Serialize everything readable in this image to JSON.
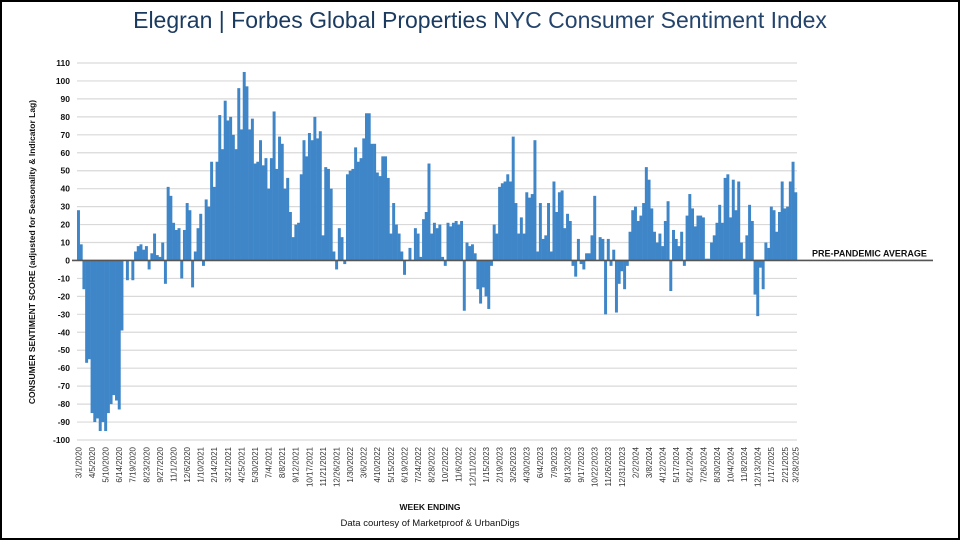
{
  "title": {
    "brand": "Elegran | Forbes Global Properties",
    "subject": "NYC Consumer Sentiment Index"
  },
  "colors": {
    "bar": "#3f86c8",
    "title": "#1b3a5f",
    "grid": "#d9d9d9",
    "zero_line": "#555555"
  },
  "chart_data": {
    "type": "bar",
    "title": "Elegran | Forbes Global Properties NYC Consumer Sentiment Index",
    "xlabel": "WEEK ENDING",
    "ylabel": "CONSUMER SENTIMENT SCORE (adjusted for Seasonality & Indicator Lag)",
    "ylim": [
      -100,
      110
    ],
    "yticks": [
      110,
      100,
      90,
      80,
      70,
      60,
      50,
      40,
      30,
      20,
      10,
      0,
      -10,
      -20,
      -30,
      -40,
      -50,
      -60,
      -70,
      -80,
      -90,
      -100
    ],
    "grid": true,
    "reference_line": {
      "value": 0,
      "label": "PRE-PANDEMIC AVERAGE"
    },
    "tick_every_weeks": 5,
    "x_tick_labels": [
      "3/1/2020",
      "4/5/2020",
      "5/10/2020",
      "6/14/2020",
      "7/19/2020",
      "8/23/2020",
      "9/27/2020",
      "11/1/2020",
      "12/6/2020",
      "1/10/2021",
      "2/14/2021",
      "3/21/2021",
      "4/25/2021",
      "5/30/2021",
      "7/4/2021",
      "8/8/2021",
      "9/12/2021",
      "10/17/2021",
      "11/21/2021",
      "12/26/2021",
      "1/30/2022",
      "3/6/2022",
      "4/10/2022",
      "5/15/2022",
      "6/19/2022",
      "7/24/2022",
      "8/28/2022",
      "10/2/2022",
      "11/6/2022",
      "12/11/2022",
      "1/15/2023",
      "2/19/2023",
      "3/26/2023",
      "4/30/2023",
      "6/4/2023",
      "7/9/2023",
      "8/13/2023",
      "9/17/2023",
      "10/22/2023",
      "11/26/2023",
      "12/31/2023",
      "2/2/2024",
      "3/8/2024",
      "4/12/2024",
      "5/17/2024",
      "6/21/2024",
      "7/26/2024",
      "8/30/2024",
      "10/4/2024",
      "11/8/2024",
      "12/13/2024",
      "1/17/2025",
      "2/21/2025",
      "3/28/2025"
    ],
    "values": [
      28,
      9,
      -16,
      -57,
      -55,
      -85,
      -90,
      -88,
      -95,
      -90,
      -95,
      -85,
      -80,
      -75,
      -78,
      -83,
      -39,
      0,
      -11,
      0,
      -11,
      5,
      8,
      9,
      6,
      8,
      -5,
      4,
      15,
      3,
      2,
      10,
      -13,
      41,
      36,
      21,
      17,
      18,
      -10,
      17,
      32,
      28,
      -15,
      5,
      18,
      26,
      -3,
      34,
      30,
      55,
      41,
      55,
      81,
      62,
      89,
      78,
      80,
      70,
      62,
      96,
      73,
      105,
      97,
      73,
      79,
      54,
      55,
      67,
      53,
      57,
      40,
      57,
      83,
      51,
      69,
      65,
      40,
      46,
      27,
      13,
      20,
      21,
      48,
      67,
      58,
      71,
      67,
      80,
      68,
      72,
      14,
      52,
      51,
      40,
      5,
      -5,
      18,
      13,
      -2,
      48,
      50,
      51,
      63,
      55,
      57,
      68,
      82,
      82,
      65,
      65,
      49,
      47,
      58,
      58,
      46,
      15,
      32,
      20,
      15,
      5,
      -8,
      0,
      7,
      0,
      18,
      15,
      2,
      23,
      27,
      54,
      15,
      21,
      18,
      20,
      2,
      -3,
      21,
      19,
      21,
      22,
      20,
      22,
      -28,
      10,
      8,
      9,
      4,
      -16,
      -24,
      -15,
      -20,
      -27,
      -3,
      20,
      15,
      41,
      43,
      44,
      48,
      44,
      69,
      32,
      15,
      24,
      15,
      38,
      35,
      37,
      67,
      5,
      32,
      12,
      14,
      32,
      5,
      44,
      27,
      38,
      39,
      18,
      26,
      22,
      -3,
      -9,
      12,
      -2,
      -5,
      4,
      4,
      14,
      36,
      0,
      13,
      12,
      -30,
      12,
      -3,
      6,
      -29,
      -13,
      -6,
      -16,
      -3,
      16,
      28,
      30,
      22,
      25,
      32,
      52,
      45,
      29,
      16,
      10,
      15,
      8,
      22,
      33,
      -17,
      17,
      12,
      8,
      16,
      -3,
      25,
      37,
      29,
      19,
      25,
      25,
      24,
      1,
      1,
      10,
      14,
      21,
      31,
      21,
      46,
      48,
      24,
      45,
      28,
      44,
      10,
      1,
      14,
      31,
      22,
      -19,
      -31,
      -4,
      -16,
      10,
      7,
      30,
      28,
      16,
      27,
      44,
      29,
      30,
      44,
      55,
      38
    ]
  },
  "footer": {
    "x_title": "WEEK ENDING",
    "credit": "Data courtesy of Marketproof & UrbanDigs"
  }
}
